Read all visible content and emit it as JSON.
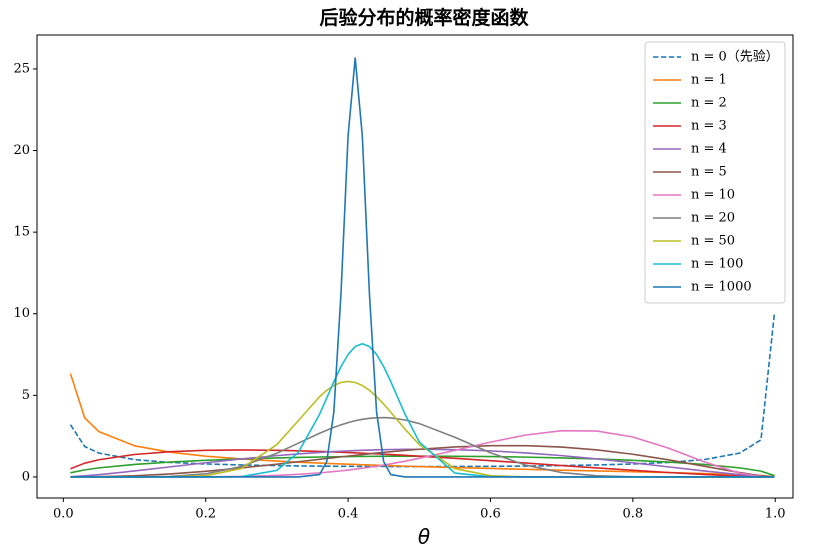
{
  "chart_data": {
    "type": "line",
    "title": "后验分布的概率密度函数",
    "xlabel": "θ",
    "x": [
      0.01,
      0.03,
      0.05,
      0.1,
      0.15,
      0.2,
      0.25,
      0.3,
      0.33,
      0.36,
      0.37,
      0.38,
      0.39,
      0.4,
      0.41,
      0.42,
      0.43,
      0.44,
      0.45,
      0.46,
      0.48,
      0.5,
      0.55,
      0.6,
      0.65,
      0.7,
      0.75,
      0.8,
      0.85,
      0.9,
      0.95,
      0.98,
      0.999
    ],
    "xlim": [
      -0.037,
      1.025
    ],
    "xticks": [
      {
        "value": 0,
        "label": "0.0"
      },
      0.2,
      0.4,
      0.6,
      0.8,
      {
        "value": 1,
        "label": "1.0"
      }
    ],
    "ylim": [
      -1.29,
      27.08
    ],
    "yticks": [
      0,
      5,
      10,
      15,
      20,
      25
    ],
    "grid": false,
    "legend": "upper right",
    "series": [
      {
        "name": "n = 0（先验）",
        "color": "#1f77b4",
        "linestyle": "dashed",
        "values": [
          3.199,
          1.866,
          1.461,
          1.061,
          0.891,
          0.796,
          0.735,
          0.695,
          0.677,
          0.663,
          0.659,
          0.656,
          0.653,
          0.65,
          0.647,
          0.645,
          0.643,
          0.641,
          0.64,
          0.639,
          0.637,
          0.637,
          0.64,
          0.65,
          0.667,
          0.695,
          0.735,
          0.796,
          0.891,
          1.061,
          1.461,
          2.274,
          10.07
        ]
      },
      {
        "name": "n = 1",
        "color": "#ff7f0e",
        "values": [
          6.334,
          3.62,
          2.775,
          1.91,
          1.515,
          1.273,
          1.103,
          0.972,
          0.907,
          0.849,
          0.831,
          0.813,
          0.796,
          0.78,
          0.764,
          0.748,
          0.733,
          0.718,
          0.704,
          0.69,
          0.663,
          0.637,
          0.576,
          0.52,
          0.467,
          0.417,
          0.368,
          0.318,
          0.267,
          0.212,
          0.146,
          0.091,
          0.02
        ]
      },
      {
        "name": "n = 2",
        "color": "#2ca02c",
        "values": [
          0.253,
          0.434,
          0.555,
          0.764,
          0.909,
          1.018,
          1.102,
          1.167,
          1.197,
          1.222,
          1.229,
          1.236,
          1.242,
          1.247,
          1.252,
          1.257,
          1.261,
          1.264,
          1.267,
          1.269,
          1.272,
          1.273,
          1.267,
          1.247,
          1.214,
          1.167,
          1.102,
          1.018,
          0.909,
          0.764,
          0.555,
          0.356,
          0.08
        ]
      },
      {
        "name": "n = 3",
        "color": "#d62728",
        "values": [
          0.502,
          0.843,
          1.054,
          1.375,
          1.546,
          1.63,
          1.654,
          1.634,
          1.604,
          1.565,
          1.549,
          1.533,
          1.515,
          1.497,
          1.478,
          1.458,
          1.437,
          1.416,
          1.394,
          1.371,
          1.323,
          1.273,
          1.14,
          0.998,
          0.85,
          0.7,
          0.551,
          0.407,
          0.273,
          0.153,
          0.055,
          0.014,
          0
        ]
      },
      {
        "name": "n = 4",
        "color": "#9467bd",
        "values": [
          0.013,
          0.067,
          0.141,
          0.367,
          0.618,
          0.869,
          1.102,
          1.307,
          1.412,
          1.502,
          1.528,
          1.553,
          1.575,
          1.597,
          1.615,
          1.633,
          1.648,
          1.661,
          1.672,
          1.681,
          1.693,
          1.698,
          1.672,
          1.597,
          1.474,
          1.307,
          1.102,
          0.869,
          0.618,
          0.367,
          0.141,
          0.037,
          0
        ]
      },
      {
        "name": "n = 5",
        "color": "#8c564b",
        "values": [
          0,
          0.004,
          0.014,
          0.073,
          0.186,
          0.348,
          0.551,
          0.784,
          0.932,
          1.081,
          1.131,
          1.18,
          1.229,
          1.277,
          1.325,
          1.372,
          1.417,
          1.462,
          1.505,
          1.547,
          1.626,
          1.698,
          1.839,
          1.916,
          1.916,
          1.83,
          1.654,
          1.391,
          1.051,
          0.66,
          0.267,
          0.073,
          0.001
        ]
      },
      {
        "name": "n = 10",
        "color": "#e377c2",
        "values": [
          0,
          0,
          0,
          0,
          0.002,
          0.01,
          0.035,
          0.095,
          0.159,
          0.25,
          0.287,
          0.328,
          0.373,
          0.421,
          0.475,
          0.532,
          0.593,
          0.658,
          0.729,
          0.804,
          0.964,
          1.14,
          1.627,
          2.134,
          2.57,
          2.832,
          2.81,
          2.447,
          1.768,
          0.931,
          0.234,
          0.029,
          0
        ]
      },
      {
        "name": "n = 20",
        "color": "#7f7f7f",
        "values": [
          0,
          0,
          0,
          0.002,
          0.031,
          0.189,
          0.638,
          1.456,
          2.067,
          2.678,
          2.863,
          3.037,
          3.193,
          3.33,
          3.442,
          3.533,
          3.593,
          3.626,
          3.636,
          3.615,
          3.49,
          3.271,
          2.435,
          1.48,
          0.719,
          0.267,
          0.071,
          0.012,
          0.001,
          0,
          0,
          0,
          0
        ]
      },
      {
        "name": "n = 50",
        "color": "#bcbd22",
        "values": [
          0,
          0,
          0,
          0,
          0.007,
          0.077,
          0.513,
          1.985,
          3.443,
          4.921,
          5.308,
          5.602,
          5.787,
          5.85,
          5.787,
          5.602,
          5.308,
          4.921,
          4.466,
          3.964,
          2.928,
          1.985,
          0.513,
          0.077,
          0.007,
          0,
          0,
          0,
          0,
          0,
          0,
          0,
          0
        ]
      },
      {
        "name": "n = 100",
        "color": "#17becf",
        "values": [
          0,
          0,
          0,
          0,
          0,
          0,
          0.019,
          0.402,
          1.499,
          3.844,
          4.836,
          5.84,
          6.76,
          7.505,
          7.991,
          8.16,
          7.991,
          7.505,
          6.76,
          5.84,
          3.844,
          2.142,
          0.238,
          0.009,
          0,
          0,
          0,
          0,
          0,
          0,
          0,
          0,
          0
        ]
      },
      {
        "name": "n = 1000",
        "color": "#1f77b4",
        "values": [
          0,
          0,
          0,
          0,
          0,
          0,
          0,
          0,
          0,
          0.145,
          0.94,
          3.99,
          11.2,
          20.9,
          25.67,
          20.9,
          11.2,
          3.99,
          0.94,
          0.145,
          0,
          0,
          0,
          0,
          0,
          0,
          0,
          0,
          0,
          0,
          0,
          0,
          0
        ]
      }
    ]
  }
}
